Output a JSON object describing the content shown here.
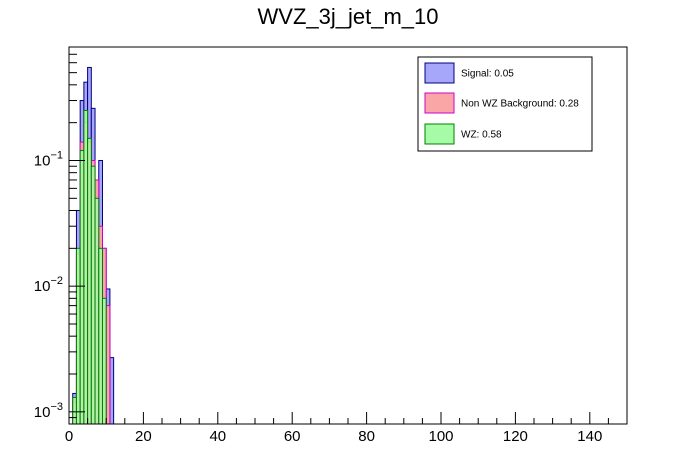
{
  "chart_data": {
    "type": "bar",
    "title": "WVZ_3j_jet_m_10",
    "xlabel": "",
    "ylabel": "",
    "xlim": [
      0,
      150
    ],
    "ylim": [
      0.0008,
      0.8
    ],
    "yscale": "log",
    "bin_width": 1,
    "x_ticks": [
      0,
      20,
      40,
      60,
      80,
      100,
      120,
      140
    ],
    "x_tick_labels": [
      "0",
      "20",
      "40",
      "60",
      "80",
      "100",
      "120",
      "140"
    ],
    "y_ticks": [
      0.001,
      0.01,
      0.1
    ],
    "y_tick_labels": [
      {
        "base": "10",
        "exp": "−3"
      },
      {
        "base": "10",
        "exp": "−2"
      },
      {
        "base": "10",
        "exp": "−1"
      }
    ],
    "legend_position": "top-right",
    "series": [
      {
        "name": "Signal: 0.05",
        "fill": "#a6a6fb",
        "stroke": "#00007f",
        "bins": [
          {
            "x": 1,
            "y": 0.0014
          },
          {
            "x": 2,
            "y": 0.04
          },
          {
            "x": 3,
            "y": 0.3
          },
          {
            "x": 4,
            "y": 0.42
          },
          {
            "x": 5,
            "y": 0.55
          },
          {
            "x": 6,
            "y": 0.26
          },
          {
            "x": 7,
            "y": 0.045
          },
          {
            "x": 8,
            "y": 0.1
          },
          {
            "x": 9,
            "y": 0.02
          },
          {
            "x": 10,
            "y": 0.0095
          },
          {
            "x": 11,
            "y": 0.0027
          }
        ]
      },
      {
        "name": "Non WZ Background: 0.28",
        "fill": "#fba6a6",
        "stroke": "#cc00cc",
        "bins": [
          {
            "x": 1,
            "y": 0.0012
          },
          {
            "x": 2,
            "y": 0.018
          },
          {
            "x": 3,
            "y": 0.14
          },
          {
            "x": 4,
            "y": 0.2
          },
          {
            "x": 5,
            "y": 0.14
          },
          {
            "x": 6,
            "y": 0.1
          },
          {
            "x": 7,
            "y": 0.07
          },
          {
            "x": 8,
            "y": 0.03
          },
          {
            "x": 9,
            "y": 0.02
          },
          {
            "x": 10,
            "y": 0.007
          }
        ]
      },
      {
        "name": "WZ: 0.58",
        "fill": "#a6fba6",
        "stroke": "#007f00",
        "bins": [
          {
            "x": 1,
            "y": 0.0013
          },
          {
            "x": 2,
            "y": 0.02
          },
          {
            "x": 3,
            "y": 0.12
          },
          {
            "x": 4,
            "y": 0.25
          },
          {
            "x": 5,
            "y": 0.15
          },
          {
            "x": 6,
            "y": 0.09
          },
          {
            "x": 7,
            "y": 0.05
          },
          {
            "x": 8,
            "y": 0.02
          },
          {
            "x": 9,
            "y": 0.008
          }
        ]
      }
    ]
  }
}
